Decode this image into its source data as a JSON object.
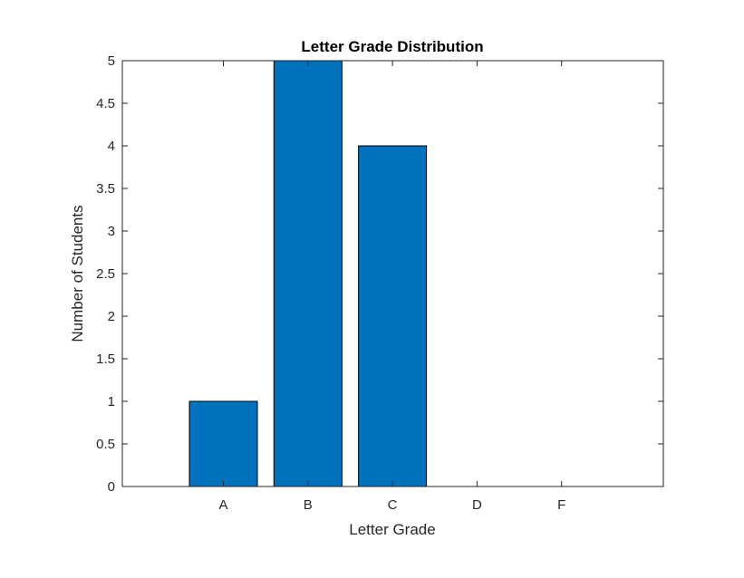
{
  "chart_data": {
    "type": "bar",
    "title": "Letter Grade Distribution",
    "xlabel": "Letter Grade",
    "ylabel": "Number of Students",
    "categories": [
      "A",
      "B",
      "C",
      "D",
      "F"
    ],
    "values": [
      1,
      5,
      4,
      0,
      0
    ],
    "ylim": [
      0,
      5
    ],
    "yticks": [
      "0",
      "0.5",
      "1",
      "1.5",
      "2",
      "2.5",
      "3",
      "3.5",
      "4",
      "4.5",
      "5"
    ],
    "bar_color": "#0072BD",
    "bar_edge_color": "#000000",
    "grid": false,
    "legend": "none"
  }
}
